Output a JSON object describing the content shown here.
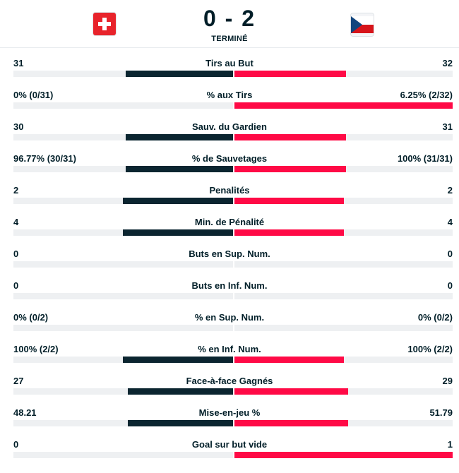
{
  "match": {
    "home_flag": "switzerland-flag-icon",
    "away_flag": "czech-flag-icon",
    "score": "0 - 2",
    "status": "TERMINÉ"
  },
  "colors": {
    "home": "#0b2530",
    "away": "#ff0a46",
    "track": "#eef0f2"
  },
  "stats": [
    {
      "label": "Tirs au But",
      "home": "31",
      "away": "32",
      "home_share": 0.49,
      "away_share": 0.51
    },
    {
      "label": "% aux Tirs",
      "home": "0% (0/31)",
      "away": "6.25% (2/32)",
      "home_share": 0.0,
      "away_share": 1.0
    },
    {
      "label": "Sauv. du Gardien",
      "home": "30",
      "away": "31",
      "home_share": 0.49,
      "away_share": 0.51
    },
    {
      "label": "% de Sauvetages",
      "home": "96.77% (30/31)",
      "away": "100% (31/31)",
      "home_share": 0.49,
      "away_share": 0.51
    },
    {
      "label": "Penalités",
      "home": "2",
      "away": "2",
      "home_share": 0.5,
      "away_share": 0.5
    },
    {
      "label": "Min. de Pénalité",
      "home": "4",
      "away": "4",
      "home_share": 0.5,
      "away_share": 0.5
    },
    {
      "label": "Buts en Sup. Num.",
      "home": "0",
      "away": "0",
      "home_share": 0.0,
      "away_share": 0.0
    },
    {
      "label": "Buts en Inf. Num.",
      "home": "0",
      "away": "0",
      "home_share": 0.0,
      "away_share": 0.0
    },
    {
      "label": "% en Sup. Num.",
      "home": "0% (0/2)",
      "away": "0% (0/2)",
      "home_share": 0.0,
      "away_share": 0.0
    },
    {
      "label": "% en Inf. Num.",
      "home": "100% (2/2)",
      "away": "100% (2/2)",
      "home_share": 0.5,
      "away_share": 0.5
    },
    {
      "label": "Face-à-face Gagnés",
      "home": "27",
      "away": "29",
      "home_share": 0.48,
      "away_share": 0.52
    },
    {
      "label": "Mise-en-jeu %",
      "home": "48.21",
      "away": "51.79",
      "home_share": 0.48,
      "away_share": 0.52
    },
    {
      "label": "Goal sur but vide",
      "home": "0",
      "away": "1",
      "home_share": 0.0,
      "away_share": 1.0
    }
  ]
}
